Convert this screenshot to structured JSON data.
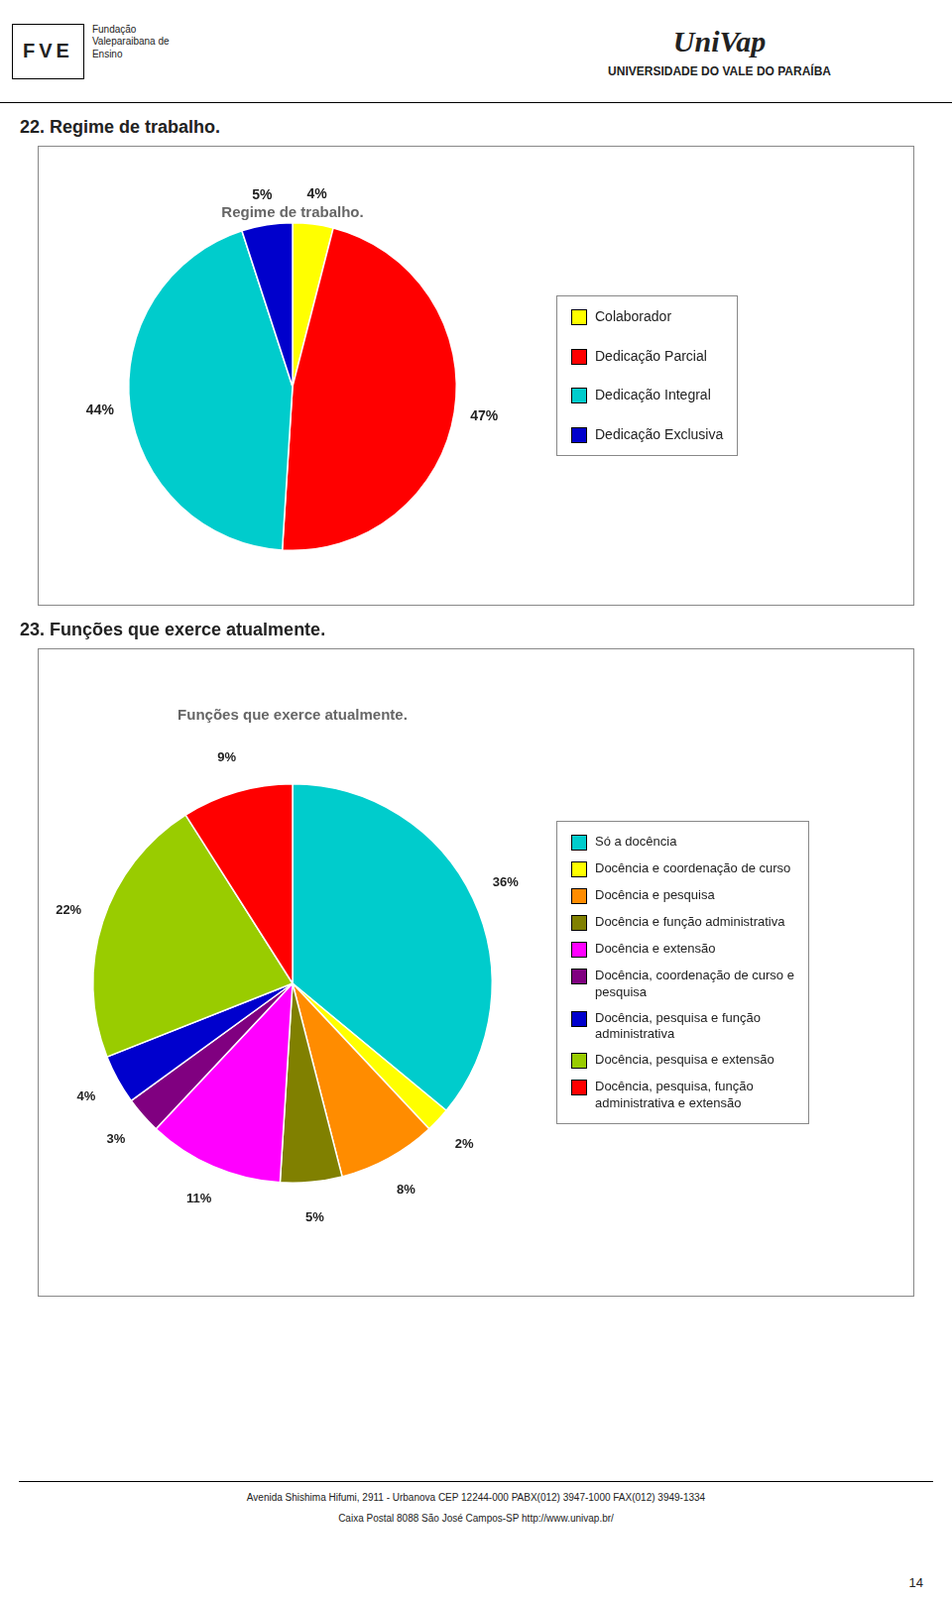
{
  "page": {
    "header_texts": [
      "FVE",
      "Fundação\nValeparaibana de\nEnsino",
      "UniVap",
      "UNIVERSIDADE DO VALE DO PARAÍBA"
    ],
    "footer_texts": [
      "Avenida Shishima Hifumi, 2911 - Urbanova CEP 12244-000   PABX(012)  3947-1000   FAX(012)  3949-1334",
      "Caixa Postal 8088   São José Campos-SP   http://www.univap.br/"
    ],
    "page_number": "14"
  },
  "chart_data": [
    {
      "type": "pie",
      "subtitle": "22. Regime de trabalho.",
      "title": "Regime de trabalho.",
      "categories": [
        "Colaborador",
        "Dedicação Parcial",
        "Dedicação Integral",
        "Dedicação Exclusiva"
      ],
      "values": [
        4,
        47,
        44,
        5
      ],
      "value_labels": [
        "4%",
        "47%",
        "44%",
        "5%"
      ],
      "colors": [
        "#FFFF00",
        "#FF0000",
        "#00CCCC",
        "#0000CC"
      ],
      "data_labels": true,
      "legend": "right"
    },
    {
      "type": "pie",
      "subtitle": "23. Funções que exerce atualmente.",
      "title": "Funções que exerce atualmente.",
      "categories": [
        "Só a docência",
        "Docência e coordenação de curso",
        "Docência e pesquisa",
        "Docência e função administrativa",
        "Docência e extensão",
        "Docência, coordenação de curso e\npesquisa",
        "Docência, pesquisa e função\nadministrativa",
        "Docência, pesquisa e extensão",
        "Docência, pesquisa, função\nadministrativa e extensão"
      ],
      "values": [
        36,
        2,
        8,
        5,
        11,
        3,
        4,
        22,
        9
      ],
      "value_labels": [
        "36%",
        "2%",
        "8%",
        "5%",
        "11%",
        "3%",
        "4%",
        "22%",
        "9%"
      ],
      "colors": [
        "#00CCCC",
        "#FFFF00",
        "#FF8C00",
        "#808000",
        "#FF00FF",
        "#800080",
        "#0000CD",
        "#99CC00",
        "#FF0000"
      ],
      "data_labels": true,
      "legend": "right"
    }
  ]
}
